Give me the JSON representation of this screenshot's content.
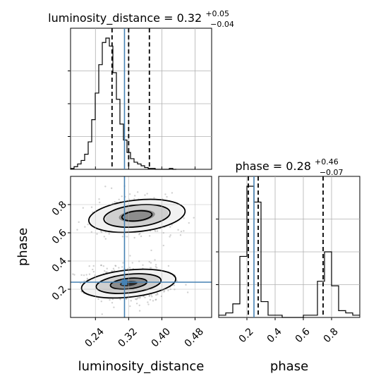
{
  "chart_data": {
    "type": "corner",
    "parameters": [
      "luminosity_distance",
      "phase"
    ],
    "truth": {
      "luminosity_distance": 0.31,
      "phase": 0.25
    },
    "grid": true,
    "panels": [
      {
        "id": "luminosity_distance_hist",
        "type": "histogram",
        "title_main": "luminosity_distance = 0.32",
        "title_sup": "+0.05",
        "title_sub": "−0.04",
        "xlim": [
          0.18,
          0.52
        ],
        "xticks": [
          0.24,
          0.32,
          0.4,
          0.48
        ],
        "bin_width": 0.0085,
        "values": [
          1,
          3,
          6,
          10,
          17,
          31,
          56,
          86,
          118,
          143,
          148,
          139,
          109,
          79,
          51,
          33,
          19,
          12,
          8,
          6,
          4,
          2,
          1,
          1,
          0,
          0,
          0,
          0,
          1,
          0
        ],
        "quantiles": [
          0.28,
          0.32,
          0.37
        ]
      },
      {
        "id": "phase_hist",
        "type": "histogram",
        "title_main": "phase = 0.28",
        "title_sup": "+0.46",
        "title_sub": "−0.07",
        "xlim": [
          0.0,
          1.0
        ],
        "xticks": [
          0.2,
          0.4,
          0.6,
          0.8
        ],
        "bin_width": 0.05,
        "values": [
          1,
          2,
          6,
          27,
          58,
          51,
          7,
          1,
          1,
          0,
          0,
          0,
          1,
          1,
          16,
          29,
          14,
          3,
          2,
          1
        ],
        "quantiles": [
          0.21,
          0.28,
          0.74
        ]
      },
      {
        "id": "joint",
        "type": "2d-density",
        "xlim": [
          0.18,
          0.52
        ],
        "ylim": [
          0.0,
          1.0
        ],
        "xticks": [
          0.24,
          0.32,
          0.4,
          0.48
        ],
        "yticks": [
          0.2,
          0.4,
          0.6,
          0.8
        ],
        "modes": [
          {
            "center": [
              0.34,
              0.72
            ],
            "spread": [
              0.047,
              0.07
            ],
            "weight": 0.4
          },
          {
            "center": [
              0.32,
              0.24
            ],
            "spread": [
              0.046,
              0.06
            ],
            "weight": 0.6
          }
        ]
      }
    ],
    "xlabels": [
      "luminosity_distance",
      "phase"
    ],
    "ylabel": "phase"
  }
}
